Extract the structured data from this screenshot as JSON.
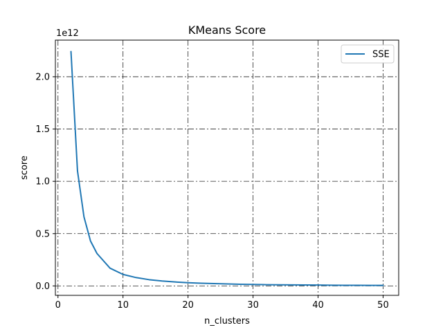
{
  "chart_data": {
    "type": "line",
    "title": "KMeans Score",
    "xlabel": "n_clusters",
    "ylabel": "score",
    "y_offset_label": "1e12",
    "xlim": [
      -0.4,
      52.4
    ],
    "ylim": [
      -0.09,
      2.35
    ],
    "x_ticks": [
      0,
      10,
      20,
      30,
      40,
      50
    ],
    "x_tick_labels": [
      "0",
      "10",
      "20",
      "30",
      "40",
      "50"
    ],
    "y_ticks": [
      0.0,
      0.5,
      1.0,
      1.5,
      2.0
    ],
    "y_tick_labels": [
      "0.0",
      "0.5",
      "1.0",
      "1.5",
      "2.0"
    ],
    "grid": true,
    "legend_position": "upper-right",
    "series": [
      {
        "name": "SSE",
        "color": "#1f77b4",
        "x": [
          2,
          3,
          4,
          5,
          6,
          8,
          10,
          12,
          14,
          16,
          18,
          20,
          22,
          24,
          26,
          28,
          30,
          32,
          34,
          36,
          38,
          40,
          42,
          44,
          46,
          48,
          50
        ],
        "y": [
          2.24,
          1.1,
          0.66,
          0.43,
          0.31,
          0.17,
          0.11,
          0.08,
          0.06,
          0.047,
          0.038,
          0.031,
          0.026,
          0.022,
          0.019,
          0.016,
          0.014,
          0.012,
          0.011,
          0.01,
          0.009,
          0.008,
          0.007,
          0.006,
          0.006,
          0.005,
          0.005
        ]
      }
    ]
  }
}
